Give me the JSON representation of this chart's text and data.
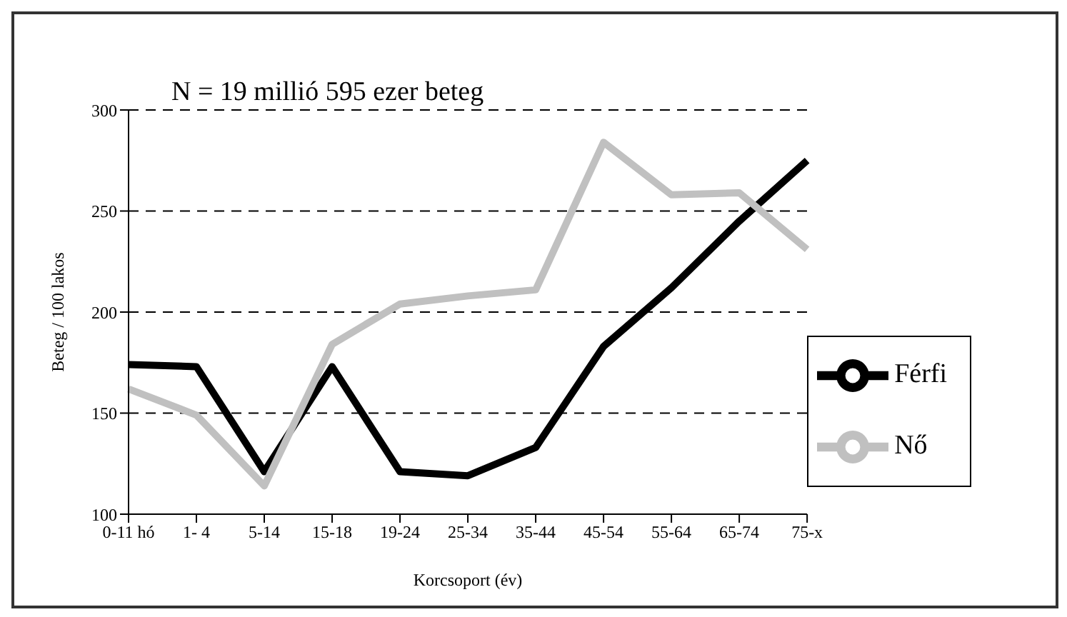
{
  "chart_data": {
    "type": "line",
    "title": "N = 19 millió 595 ezer beteg",
    "xlabel": "Korcsoport (év)",
    "ylabel": "Beteg / 100 lakos",
    "categories": [
      "0-11 hó",
      "1- 4",
      "5-14",
      "15-18",
      "19-24",
      "25-34",
      "35-44",
      "45-54",
      "55-64",
      "65-74",
      "75-x"
    ],
    "series": [
      {
        "name": "Férfi",
        "color": "#000000",
        "values": [
          174,
          173,
          121,
          173,
          121,
          119,
          133,
          183,
          212,
          245,
          275
        ]
      },
      {
        "name": "Nő",
        "color": "#c0c0c0",
        "values": [
          162,
          149,
          114,
          184,
          204,
          208,
          211,
          284,
          258,
          259,
          231
        ]
      }
    ],
    "ylim": [
      100,
      300
    ],
    "yticks": [
      100,
      150,
      200,
      250,
      300
    ],
    "grid": "y",
    "legend": "right",
    "marker": "none",
    "line_style": "solid"
  }
}
